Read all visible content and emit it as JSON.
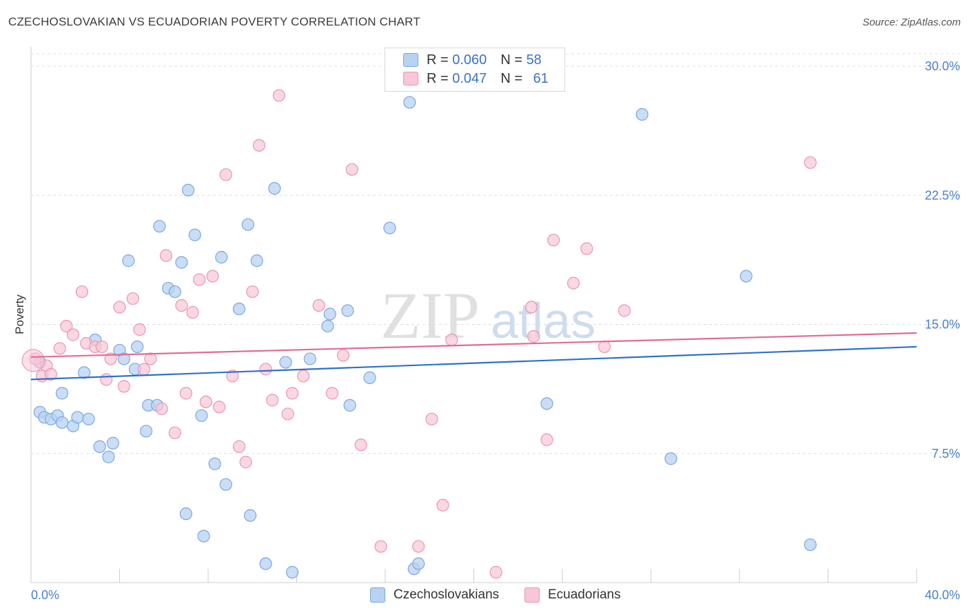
{
  "title": "CZECHOSLOVAKIAN VS ECUADORIAN POVERTY CORRELATION CHART",
  "source": "Source: ZipAtlas.com",
  "legend": {
    "rows": [
      {
        "r_label": "R = ",
        "r_value": "0.060",
        "n_label": "N = ",
        "n_value": "58"
      },
      {
        "r_label": "R = ",
        "r_value": "0.047",
        "n_label": "N = ",
        "n_value": "61"
      }
    ]
  },
  "bottom_legend": [
    "Czechoslovakians",
    "Ecuadorians"
  ],
  "watermark": {
    "zip": "ZIP",
    "atlas": "atlas"
  },
  "colors": {
    "blue_fill": "#b8d2f3",
    "blue_stroke": "#7aa7df",
    "blue_line": "#2f6fcb",
    "pink_fill": "#f8c6d6",
    "pink_stroke": "#e896b0",
    "pink_line": "#e06b94",
    "axis_text": "#4a7fc8",
    "grid": "#dddddd"
  },
  "chart_data": {
    "type": "scatter",
    "title": "CZECHOSLOVAKIAN VS ECUADORIAN POVERTY CORRELATION CHART",
    "xlabel": "",
    "ylabel": "Poverty",
    "xlim": [
      0,
      40
    ],
    "ylim": [
      0,
      31.5
    ],
    "x_tick_labels": [
      "0.0%",
      "40.0%"
    ],
    "y_ticks": [
      7.5,
      15.0,
      22.5,
      30.0
    ],
    "y_tick_labels": [
      "7.5%",
      "15.0%",
      "22.5%",
      "30.0%"
    ],
    "grid": "horizontal dashed",
    "legend_position": "top-center",
    "series": [
      {
        "name": "Czechoslovakians",
        "r": 0.06,
        "n": 58,
        "trend": {
          "x": [
            0,
            40
          ],
          "y": [
            11.8,
            13.7
          ]
        },
        "points": [
          [
            0.4,
            12.8
          ],
          [
            0.4,
            9.9
          ],
          [
            0.6,
            9.6
          ],
          [
            0.9,
            9.5
          ],
          [
            1.2,
            9.7
          ],
          [
            1.4,
            9.3
          ],
          [
            1.4,
            11.0
          ],
          [
            1.9,
            9.1
          ],
          [
            2.1,
            9.6
          ],
          [
            2.4,
            12.2
          ],
          [
            2.6,
            9.5
          ],
          [
            2.9,
            14.1
          ],
          [
            3.1,
            7.9
          ],
          [
            3.5,
            7.3
          ],
          [
            3.7,
            8.1
          ],
          [
            4.0,
            13.5
          ],
          [
            4.2,
            13.0
          ],
          [
            4.4,
            18.7
          ],
          [
            4.7,
            12.4
          ],
          [
            4.8,
            13.7
          ],
          [
            5.2,
            8.8
          ],
          [
            5.3,
            10.3
          ],
          [
            5.7,
            10.3
          ],
          [
            5.8,
            20.7
          ],
          [
            6.2,
            17.1
          ],
          [
            6.5,
            16.9
          ],
          [
            6.8,
            18.6
          ],
          [
            7.0,
            4.0
          ],
          [
            7.1,
            22.8
          ],
          [
            7.4,
            20.2
          ],
          [
            7.7,
            9.7
          ],
          [
            7.8,
            2.7
          ],
          [
            8.3,
            6.9
          ],
          [
            8.6,
            18.9
          ],
          [
            8.8,
            5.7
          ],
          [
            9.4,
            15.9
          ],
          [
            9.8,
            20.8
          ],
          [
            9.9,
            3.9
          ],
          [
            10.2,
            18.7
          ],
          [
            10.6,
            1.1
          ],
          [
            11.0,
            22.9
          ],
          [
            11.5,
            12.8
          ],
          [
            11.8,
            0.6
          ],
          [
            12.6,
            13.0
          ],
          [
            13.4,
            14.9
          ],
          [
            13.5,
            15.6
          ],
          [
            14.3,
            15.8
          ],
          [
            14.4,
            10.3
          ],
          [
            15.3,
            11.9
          ],
          [
            16.2,
            20.6
          ],
          [
            17.1,
            27.9
          ],
          [
            17.3,
            0.8
          ],
          [
            17.5,
            1.1
          ],
          [
            23.3,
            10.4
          ],
          [
            27.6,
            27.2
          ],
          [
            28.9,
            7.2
          ],
          [
            32.3,
            17.8
          ],
          [
            35.2,
            2.2
          ]
        ]
      },
      {
        "name": "Ecuadorians",
        "r": 0.047,
        "n": 61,
        "trend": {
          "x": [
            0,
            40
          ],
          "y": [
            13.1,
            14.5
          ]
        },
        "points": [
          [
            0.2,
            13.0
          ],
          [
            0.5,
            12.0
          ],
          [
            0.7,
            12.6
          ],
          [
            0.9,
            12.1
          ],
          [
            1.3,
            13.6
          ],
          [
            1.6,
            14.9
          ],
          [
            1.9,
            14.4
          ],
          [
            2.3,
            16.9
          ],
          [
            2.5,
            13.9
          ],
          [
            2.9,
            13.7
          ],
          [
            3.2,
            13.7
          ],
          [
            3.4,
            11.8
          ],
          [
            3.6,
            13.0
          ],
          [
            4.0,
            16.0
          ],
          [
            4.2,
            11.4
          ],
          [
            4.6,
            16.5
          ],
          [
            4.9,
            14.7
          ],
          [
            5.1,
            12.4
          ],
          [
            5.4,
            13.0
          ],
          [
            5.9,
            10.1
          ],
          [
            6.1,
            19.0
          ],
          [
            6.5,
            8.7
          ],
          [
            6.8,
            16.1
          ],
          [
            7.0,
            11.0
          ],
          [
            7.3,
            15.7
          ],
          [
            7.6,
            17.6
          ],
          [
            7.9,
            10.5
          ],
          [
            8.2,
            17.8
          ],
          [
            8.5,
            10.2
          ],
          [
            8.8,
            23.7
          ],
          [
            9.1,
            12.0
          ],
          [
            9.4,
            7.9
          ],
          [
            9.7,
            7.0
          ],
          [
            10.0,
            16.9
          ],
          [
            10.3,
            25.4
          ],
          [
            10.6,
            12.4
          ],
          [
            10.9,
            10.6
          ],
          [
            11.2,
            28.3
          ],
          [
            11.6,
            9.8
          ],
          [
            11.8,
            11.0
          ],
          [
            12.3,
            12.0
          ],
          [
            13.0,
            16.1
          ],
          [
            13.6,
            11.0
          ],
          [
            14.1,
            13.2
          ],
          [
            14.5,
            24.0
          ],
          [
            14.9,
            8.0
          ],
          [
            15.8,
            2.1
          ],
          [
            17.5,
            2.1
          ],
          [
            18.1,
            9.5
          ],
          [
            18.6,
            4.5
          ],
          [
            19.0,
            14.1
          ],
          [
            21.0,
            0.6
          ],
          [
            22.6,
            16.0
          ],
          [
            22.7,
            14.3
          ],
          [
            23.3,
            8.3
          ],
          [
            23.6,
            19.9
          ],
          [
            24.5,
            17.4
          ],
          [
            25.1,
            19.4
          ],
          [
            25.9,
            13.7
          ],
          [
            26.8,
            15.8
          ],
          [
            35.2,
            24.4
          ]
        ]
      }
    ]
  }
}
